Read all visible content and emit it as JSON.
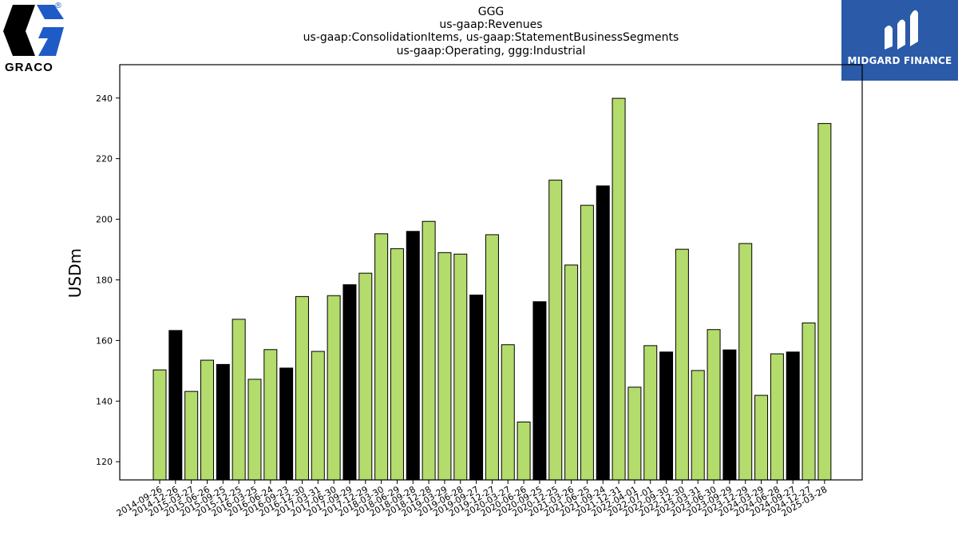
{
  "titles": [
    "GGG",
    "us-gaap:Revenues",
    "us-gaap:ConsolidationItems, us-gaap:StatementBusinessSegments",
    "us-gaap:Operating, ggg:Industrial"
  ],
  "logos": {
    "left": {
      "text": "GRACO",
      "mark": "®"
    },
    "right": {
      "text": "MIDGARD FINANCE"
    }
  },
  "colors": {
    "regular": "#b3dc6c",
    "highlight": "#000000",
    "edge": "#000000",
    "logo_right_bg": "#2a5aa8",
    "logo_left_blue": "#1e5bc6"
  },
  "chart_data": {
    "type": "bar",
    "ylabel": "USDm",
    "ylim": [
      114,
      251
    ],
    "yticks": [
      120,
      140,
      160,
      180,
      200,
      220,
      240
    ],
    "categories": [
      "2014-09-26",
      "2014-12-26",
      "2015-03-27",
      "2015-06-26",
      "2015-09-25",
      "2015-12-25",
      "2016-03-25",
      "2016-06-24",
      "2016-09-23",
      "2016-12-30",
      "2017-03-31",
      "2017-06-30",
      "2017-09-29",
      "2017-12-29",
      "2018-03-30",
      "2018-06-29",
      "2018-09-28",
      "2018-12-28",
      "2019-03-29",
      "2019-06-28",
      "2019-09-27",
      "2019-12-27",
      "2020-03-27",
      "2020-06-26",
      "2020-09-25",
      "2020-12-25",
      "2021-03-26",
      "2021-06-25",
      "2021-09-24",
      "2021-12-31",
      "2022-04-01",
      "2022-07-01",
      "2022-09-30",
      "2022-12-30",
      "2023-03-31",
      "2023-06-30",
      "2023-09-29",
      "2023-12-29",
      "2024-03-29",
      "2024-06-28",
      "2024-09-27",
      "2024-12-27",
      "2025-03-28"
    ],
    "values": [
      150.3,
      163.3,
      143.2,
      153.5,
      152.1,
      167.0,
      147.2,
      157.0,
      150.9,
      174.5,
      156.4,
      174.8,
      178.4,
      182.2,
      195.2,
      190.3,
      196.0,
      199.3,
      189.0,
      188.5,
      175.0,
      194.9,
      158.6,
      133.1,
      172.8,
      212.9,
      184.9,
      204.6,
      211.0,
      239.9,
      144.6,
      158.3,
      156.2,
      190.1,
      150.1,
      163.6,
      156.9,
      192.0,
      141.9,
      155.6,
      156.2,
      165.8,
      231.6
    ],
    "highlight": [
      false,
      true,
      false,
      false,
      true,
      false,
      false,
      false,
      true,
      false,
      false,
      false,
      true,
      false,
      false,
      false,
      true,
      false,
      false,
      false,
      true,
      false,
      false,
      false,
      true,
      false,
      false,
      false,
      true,
      false,
      false,
      false,
      true,
      false,
      false,
      false,
      true,
      false,
      false,
      false,
      true,
      false,
      false
    ]
  }
}
